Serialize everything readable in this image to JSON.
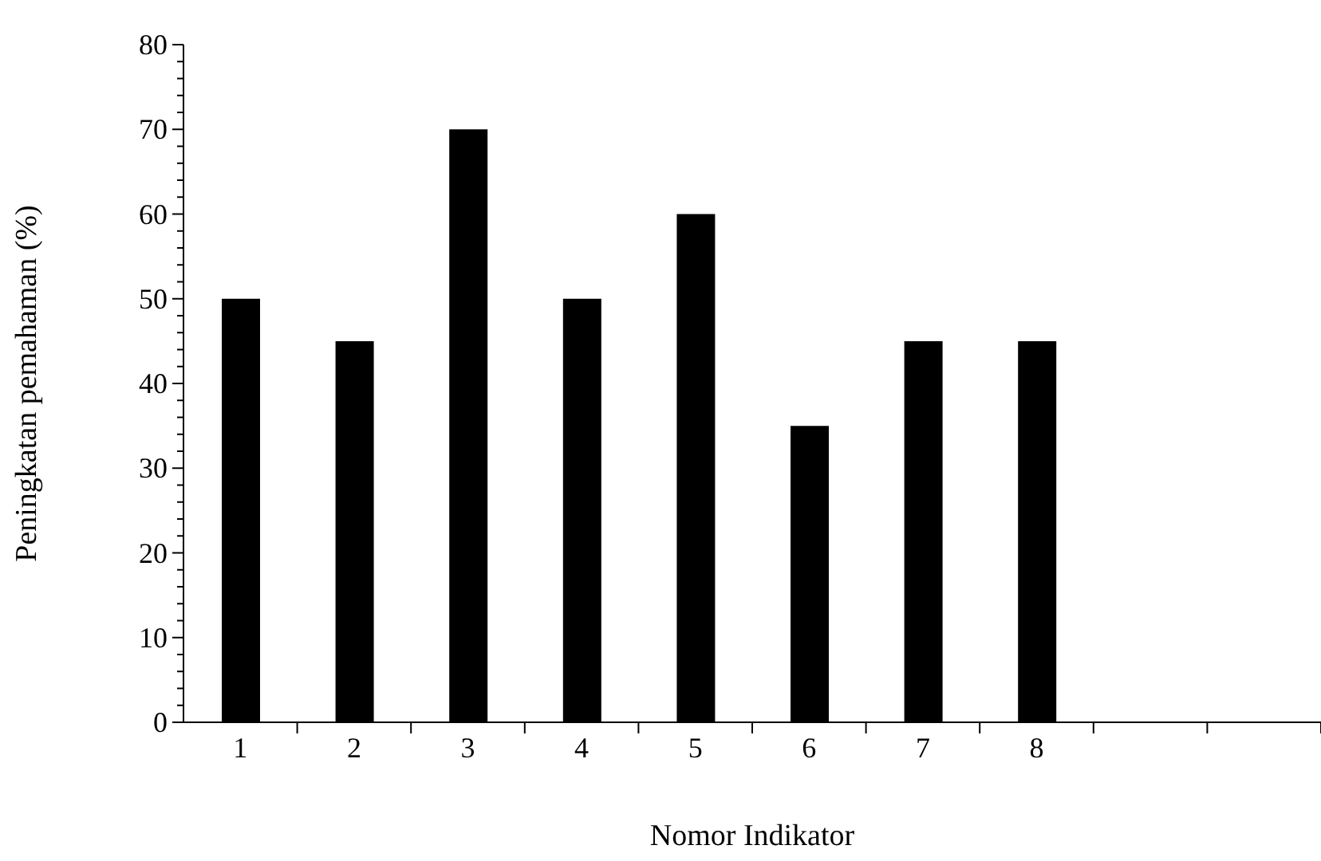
{
  "chart_data": {
    "type": "bar",
    "xlabel": "Nomor Indikator",
    "ylabel": "Peningkatan pemahaman (%)",
    "categories": [
      "1",
      "2",
      "3",
      "4",
      "5",
      "6",
      "7",
      "8",
      null,
      null
    ],
    "values": [
      50,
      45,
      70,
      50,
      60,
      35,
      45,
      45,
      null,
      null
    ],
    "color": "#000000",
    "ylim": [
      0,
      80
    ],
    "yticks": [
      0,
      {
        "value": 2,
        "label": null
      },
      {
        "value": 4,
        "label": null
      },
      {
        "value": 6,
        "label": null
      },
      {
        "value": 8,
        "label": null
      },
      10,
      {
        "value": 12,
        "label": null
      },
      {
        "value": 14,
        "label": null
      },
      {
        "value": 16,
        "label": null
      },
      {
        "value": 18,
        "label": null
      },
      20,
      {
        "value": 22,
        "label": null
      },
      {
        "value": 24,
        "label": null
      },
      {
        "value": 26,
        "label": null
      },
      {
        "value": 28,
        "label": null
      },
      30,
      {
        "value": 32,
        "label": null
      },
      {
        "value": 34,
        "label": null
      },
      {
        "value": 36,
        "label": null
      },
      {
        "value": 38,
        "label": null
      },
      40,
      {
        "value": 42,
        "label": null
      },
      {
        "value": 44,
        "label": null
      },
      {
        "value": 46,
        "label": null
      },
      {
        "value": 48,
        "label": null
      },
      50,
      {
        "value": 52,
        "label": null
      },
      {
        "value": 54,
        "label": null
      },
      {
        "value": 56,
        "label": null
      },
      {
        "value": 58,
        "label": null
      },
      60,
      {
        "value": 62,
        "label": null
      },
      {
        "value": 64,
        "label": null
      },
      {
        "value": 66,
        "label": null
      },
      {
        "value": 68,
        "label": null
      },
      70,
      {
        "value": 72,
        "label": null
      },
      {
        "value": 74,
        "label": null
      },
      {
        "value": 76,
        "label": null
      },
      {
        "value": 78,
        "label": null
      },
      80
    ],
    "grid": false,
    "legend": false
  }
}
